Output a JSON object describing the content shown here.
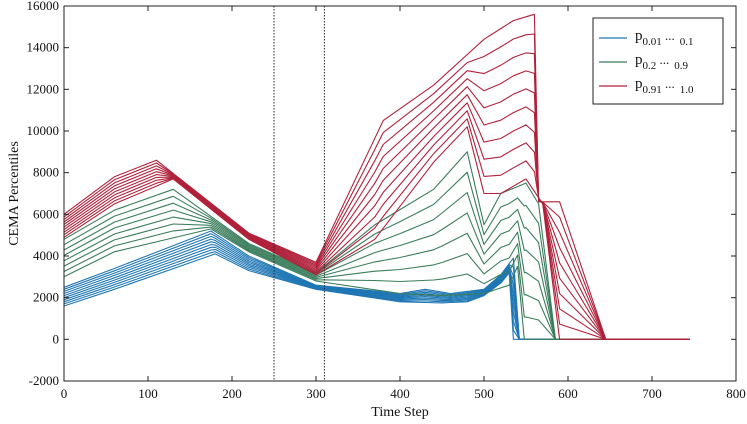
{
  "chart_data": {
    "type": "line",
    "title": "",
    "xlabel": "Time Step",
    "ylabel": "CEMA Percentiles",
    "xlim": [
      0,
      800
    ],
    "ylim": [
      -2000,
      16000
    ],
    "xticks": [
      0,
      100,
      200,
      300,
      400,
      500,
      600,
      700,
      800
    ],
    "yticks": [
      -2000,
      0,
      2000,
      4000,
      6000,
      8000,
      10000,
      12000,
      14000,
      16000
    ],
    "xtick_labels": [
      "0",
      "100",
      "200",
      "300",
      "400",
      "500",
      "600",
      "700",
      "800"
    ],
    "ytick_labels": [
      "-2000",
      "0",
      "2000",
      "4000",
      "6000",
      "8000",
      "10000",
      "12000",
      "14000",
      "16000"
    ],
    "vlines": [
      250,
      310
    ],
    "legend_position": "top-right",
    "groups": [
      {
        "name": "p 0.01 ... 0.1",
        "legend": {
          "base": "p",
          "sub": "0.01",
          "dots": " ...",
          "sub2": "0.1"
        },
        "color": "#1f77b4",
        "count": 10,
        "lowest": {
          "x": [
            0,
            60,
            180,
            220,
            300,
            400,
            450,
            480,
            500,
            520,
            530,
            535,
            745
          ],
          "y": [
            1600,
            2400,
            4100,
            3300,
            2400,
            1800,
            1750,
            1800,
            2100,
            2700,
            3200,
            0,
            0
          ]
        },
        "highest": {
          "x": [
            0,
            60,
            175,
            220,
            300,
            400,
            430,
            460,
            500,
            520,
            535,
            542,
            745
          ],
          "y": [
            2500,
            3400,
            5200,
            4000,
            2600,
            2200,
            2400,
            2200,
            2400,
            3100,
            3900,
            0,
            0
          ]
        }
      },
      {
        "name": "p 0.2 ... 0.9",
        "legend": {
          "base": "p",
          "sub": "0.2",
          "dots": " ...",
          "sub2": "0.9"
        },
        "color": "#3a7d5c",
        "count": 8,
        "lowest": {
          "x": [
            0,
            60,
            175,
            220,
            300,
            400,
            450,
            500,
            530,
            540,
            548,
            745
          ],
          "y": [
            3000,
            4200,
            5300,
            4200,
            2800,
            2200,
            2100,
            2200,
            2600,
            3500,
            0,
            0
          ]
        },
        "highest": {
          "x": [
            0,
            60,
            130,
            220,
            300,
            370,
            440,
            480,
            500,
            520,
            550,
            565,
            585,
            745
          ],
          "y": [
            4800,
            6200,
            7200,
            4600,
            3200,
            5500,
            7200,
            9000,
            5500,
            7000,
            7500,
            6500,
            0,
            0
          ]
        }
      },
      {
        "name": "p 0.91 ... 1.0",
        "legend": {
          "base": "p",
          "sub": "0.91",
          "dots": " ...",
          "sub2": "1.0"
        },
        "color": "#b0213a",
        "count": 10,
        "lowest": {
          "x": [
            0,
            60,
            130,
            220,
            300,
            370,
            440,
            480,
            500,
            520,
            550,
            570,
            590,
            745
          ],
          "y": [
            4900,
            6500,
            7700,
            4800,
            3100,
            4800,
            8500,
            10200,
            7000,
            7000,
            7700,
            6500,
            0,
            0
          ]
        },
        "highest": {
          "x": [
            0,
            60,
            110,
            220,
            300,
            380,
            440,
            500,
            535,
            560,
            565,
            590,
            620,
            645,
            745
          ],
          "y": [
            6000,
            7800,
            8600,
            5100,
            3700,
            10500,
            12200,
            14400,
            15300,
            15600,
            6600,
            6600,
            3000,
            0,
            0
          ]
        }
      }
    ]
  }
}
